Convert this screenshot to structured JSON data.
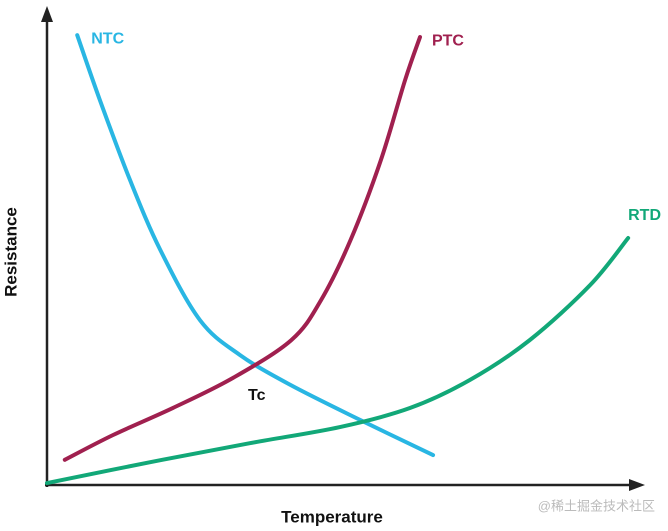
{
  "chart_data": {
    "type": "line",
    "x_label": "Temperature",
    "y_label": "Resistance",
    "xlim": [
      0,
      100
    ],
    "ylim": [
      0,
      100
    ],
    "annotation": "Tc",
    "watermark": "@稀土掘金技术社区",
    "series": [
      {
        "name": "NTC",
        "color": "#29b6e3",
        "x": [
          5.1,
          8.9,
          14.0,
          19.1,
          25.8,
          32.5,
          41.0,
          52.8,
          65.1
        ],
        "values": [
          94.7,
          81.1,
          64.2,
          49.5,
          34.7,
          27.4,
          21.1,
          13.7,
          6.3
        ]
      },
      {
        "name": "PTC",
        "color": "#a0204f",
        "x": [
          3.0,
          11.1,
          21.2,
          31.3,
          41.2,
          46.2,
          51.2,
          56.3,
          60.4,
          62.9
        ],
        "values": [
          5.3,
          10.5,
          16.2,
          22.5,
          30.5,
          38.9,
          51.6,
          68.4,
          85.3,
          94.3
        ]
      },
      {
        "name": "RTD",
        "color": "#12a878",
        "x": [
          0,
          17.4,
          34.2,
          49.4,
          61.2,
          71.3,
          81.4,
          91.6,
          98.0
        ],
        "values": [
          0.4,
          4.8,
          8.8,
          12.2,
          16.2,
          22.1,
          30.5,
          42.1,
          52.0
        ]
      }
    ]
  }
}
